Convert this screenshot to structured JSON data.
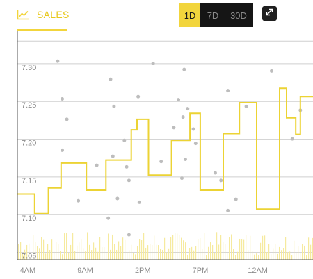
{
  "header": {
    "tab_label": "SALES",
    "tab_icon": "line-chart-icon",
    "ranges": [
      {
        "label": "1D",
        "active": true
      },
      {
        "label": "7D",
        "active": false
      },
      {
        "label": "30D",
        "active": false
      }
    ],
    "expand_icon": "expand-icon"
  },
  "colors": {
    "accent": "#f2d53c",
    "line": "#ecd334",
    "volume": "#f6ea9e",
    "dots": "#bdbdbd",
    "grid": "#cfcfcf",
    "text": "#8c8c8c"
  },
  "chart_data": {
    "type": "line",
    "line_shape": "step",
    "xlim": [
      3.1,
      28.8
    ],
    "ylim": [
      7.045,
      7.345
    ],
    "y_ticks": [
      "7.05",
      "7.10",
      "7.15",
      "7.20",
      "7.25",
      "7.30"
    ],
    "x_ticks": [
      {
        "label": "4AM",
        "hour": 4
      },
      {
        "label": "9AM",
        "hour": 9
      },
      {
        "label": "2PM",
        "hour": 14
      },
      {
        "label": "7PM",
        "hour": 19
      },
      {
        "label": "12AM",
        "hour": 24
      }
    ],
    "x_unit": "hour of day (values past 24 continue into the next day)",
    "series": [
      {
        "role": "step-line",
        "points": [
          {
            "hour": 3.1,
            "value": 7.132
          },
          {
            "hour": 4.6,
            "value": 7.106
          },
          {
            "hour": 5.8,
            "value": 7.14
          },
          {
            "hour": 6.9,
            "value": 7.173
          },
          {
            "hour": 9.1,
            "value": 7.137
          },
          {
            "hour": 10.8,
            "value": 7.177
          },
          {
            "hour": 13.0,
            "value": 7.217
          },
          {
            "hour": 13.5,
            "value": 7.231
          },
          {
            "hour": 14.5,
            "value": 7.157
          },
          {
            "hour": 16.5,
            "value": 7.203
          },
          {
            "hour": 18.1,
            "value": 7.239
          },
          {
            "hour": 19.0,
            "value": 7.137
          },
          {
            "hour": 21.0,
            "value": 7.212
          },
          {
            "hour": 22.4,
            "value": 7.253
          },
          {
            "hour": 23.9,
            "value": 7.112
          },
          {
            "hour": 25.9,
            "value": 7.272
          },
          {
            "hour": 26.5,
            "value": 7.233
          },
          {
            "hour": 27.3,
            "value": 7.211
          },
          {
            "hour": 27.7,
            "value": 7.261
          },
          {
            "hour": 28.8,
            "value": 7.261
          }
        ]
      },
      {
        "role": "scatter",
        "points": [
          {
            "hour": 6.6,
            "value": 7.308
          },
          {
            "hour": 7.0,
            "value": 7.258
          },
          {
            "hour": 7.4,
            "value": 7.231
          },
          {
            "hour": 7.0,
            "value": 7.19
          },
          {
            "hour": 8.4,
            "value": 7.123
          },
          {
            "hour": 10.0,
            "value": 7.17
          },
          {
            "hour": 11.2,
            "value": 7.284
          },
          {
            "hour": 11.5,
            "value": 7.248
          },
          {
            "hour": 11.4,
            "value": 7.182
          },
          {
            "hour": 11.8,
            "value": 7.126
          },
          {
            "hour": 12.4,
            "value": 7.203
          },
          {
            "hour": 12.6,
            "value": 7.168
          },
          {
            "hour": 12.8,
            "value": 7.15
          },
          {
            "hour": 11.0,
            "value": 7.1
          },
          {
            "hour": 12.8,
            "value": 7.078
          },
          {
            "hour": 13.6,
            "value": 7.261
          },
          {
            "hour": 13.7,
            "value": 7.121
          },
          {
            "hour": 14.9,
            "value": 7.305
          },
          {
            "hour": 15.6,
            "value": 7.175
          },
          {
            "hour": 16.7,
            "value": 7.22
          },
          {
            "hour": 17.1,
            "value": 7.257
          },
          {
            "hour": 17.6,
            "value": 7.297
          },
          {
            "hour": 17.5,
            "value": 7.234
          },
          {
            "hour": 17.9,
            "value": 7.245
          },
          {
            "hour": 17.7,
            "value": 7.178
          },
          {
            "hour": 17.4,
            "value": 7.153
          },
          {
            "hour": 18.4,
            "value": 7.218
          },
          {
            "hour": 18.6,
            "value": 7.199
          },
          {
            "hour": 20.3,
            "value": 7.16
          },
          {
            "hour": 20.8,
            "value": 7.15
          },
          {
            "hour": 21.4,
            "value": 7.269
          },
          {
            "hour": 21.4,
            "value": 7.11
          },
          {
            "hour": 22.1,
            "value": 7.125
          },
          {
            "hour": 23.0,
            "value": 7.248
          },
          {
            "hour": 25.2,
            "value": 7.295
          },
          {
            "hour": 27.0,
            "value": 7.205
          },
          {
            "hour": 27.7,
            "value": 7.243
          }
        ]
      }
    ]
  }
}
